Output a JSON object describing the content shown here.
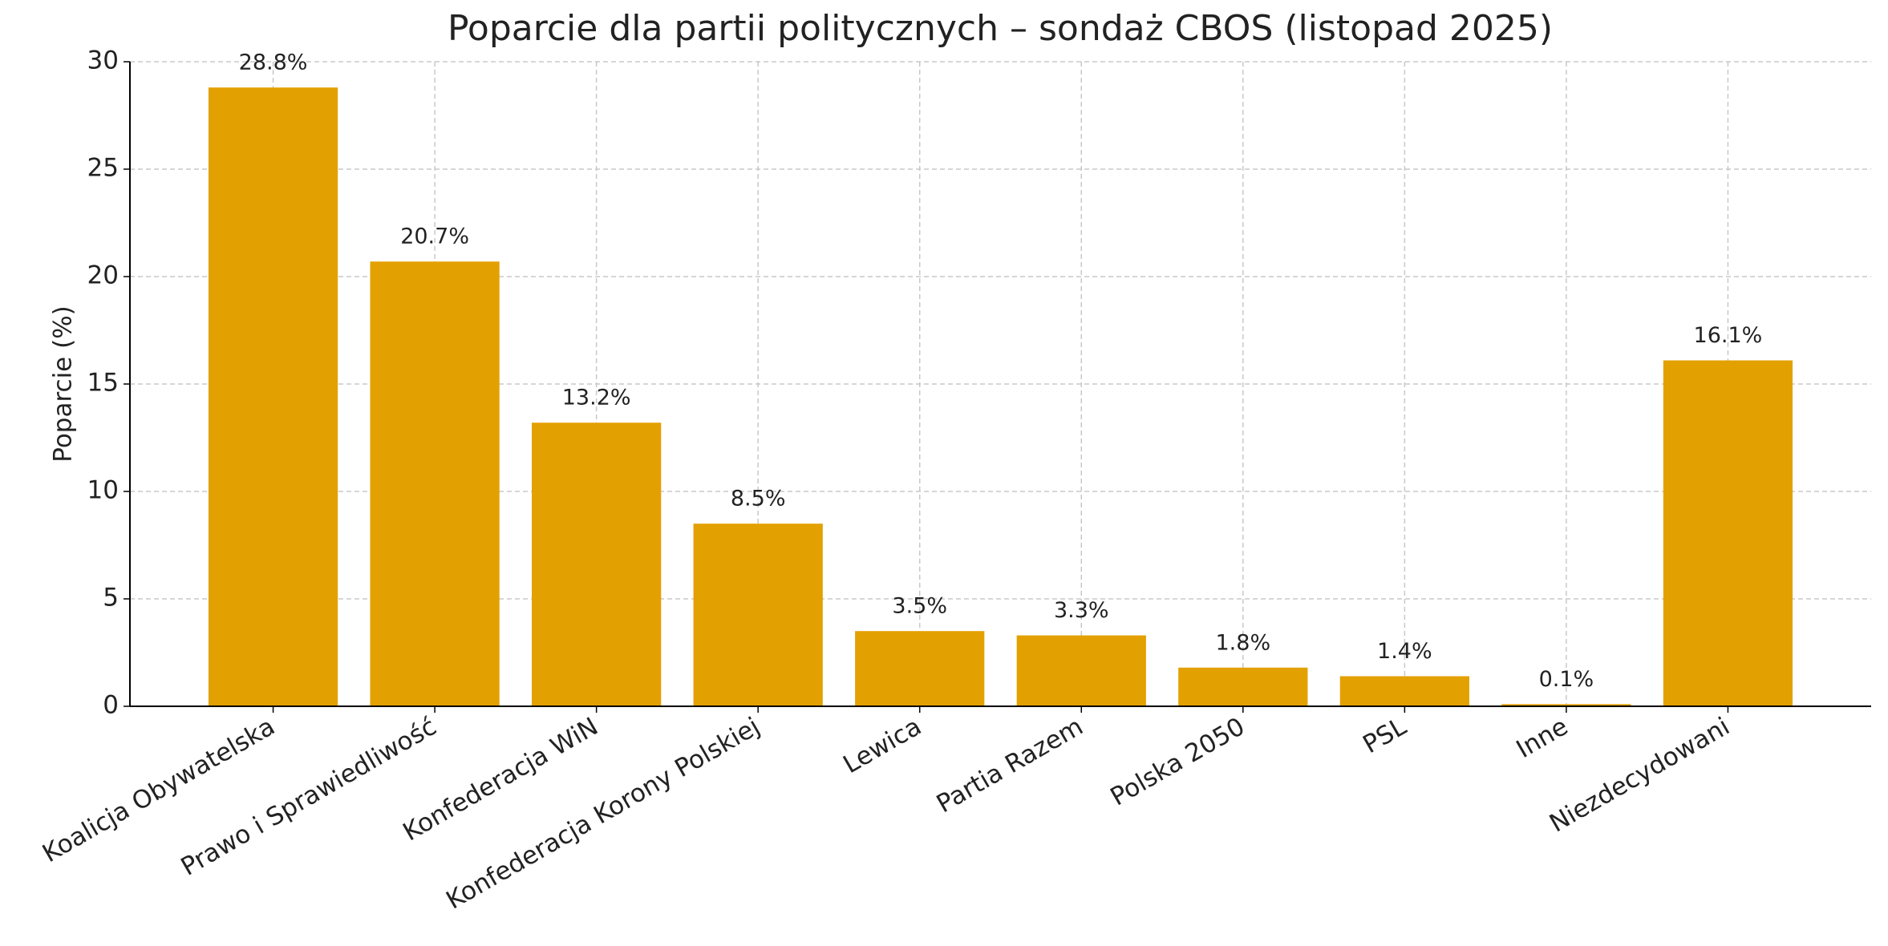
{
  "chart_data": {
    "type": "bar",
    "title": "Poparcie dla partii politycznych – sondaż CBOS (listopad 2025)",
    "y_label": "Poparcie (%)",
    "categories": [
      "Koalicja Obywatelska",
      "Prawo i Sprawiedliwość",
      "Konfederacja WiN",
      "Konfederacja Korony Polskiej",
      "Lewica",
      "Partia Razem",
      "Polska 2050",
      "PSL",
      "Inne",
      "Niezdecydowani"
    ],
    "values": [
      28.8,
      20.7,
      13.2,
      8.5,
      3.5,
      3.3,
      1.8,
      1.4,
      0.1,
      16.1
    ],
    "value_labels": [
      "28.8%",
      "20.7%",
      "13.2%",
      "8.5%",
      "3.5%",
      "3.3%",
      "1.8%",
      "1.4%",
      "0.1%",
      "16.1%"
    ],
    "color": "#e3a001",
    "ylim": [
      0,
      30
    ],
    "yticks": [
      0,
      5,
      10,
      15,
      20,
      25,
      30
    ],
    "grid": true
  }
}
